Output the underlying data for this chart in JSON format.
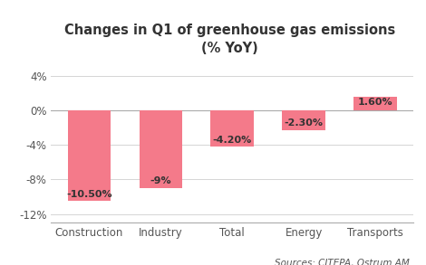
{
  "title": "Changes in Q1 of greenhouse gas emissions\n(% YoY)",
  "categories": [
    "Construction",
    "Industry",
    "Total",
    "Energy",
    "Transports"
  ],
  "values": [
    -10.5,
    -9.0,
    -4.2,
    -2.3,
    1.6
  ],
  "labels": [
    "-10.50%",
    "-9%",
    "-4.20%",
    "-2.30%",
    "1.60%"
  ],
  "bar_color": "#F47A8A",
  "ylim": [
    -13,
    6
  ],
  "yticks": [
    -12,
    -8,
    -4,
    0,
    4
  ],
  "ytick_labels": [
    "-12%",
    "-8%",
    "-4%",
    "0%",
    "4%"
  ],
  "source_text": "Sources: CITEPA, Ostrum AM",
  "background_color": "#ffffff",
  "title_fontsize": 10.5,
  "label_fontsize": 8,
  "tick_fontsize": 8.5,
  "source_fontsize": 7.5
}
